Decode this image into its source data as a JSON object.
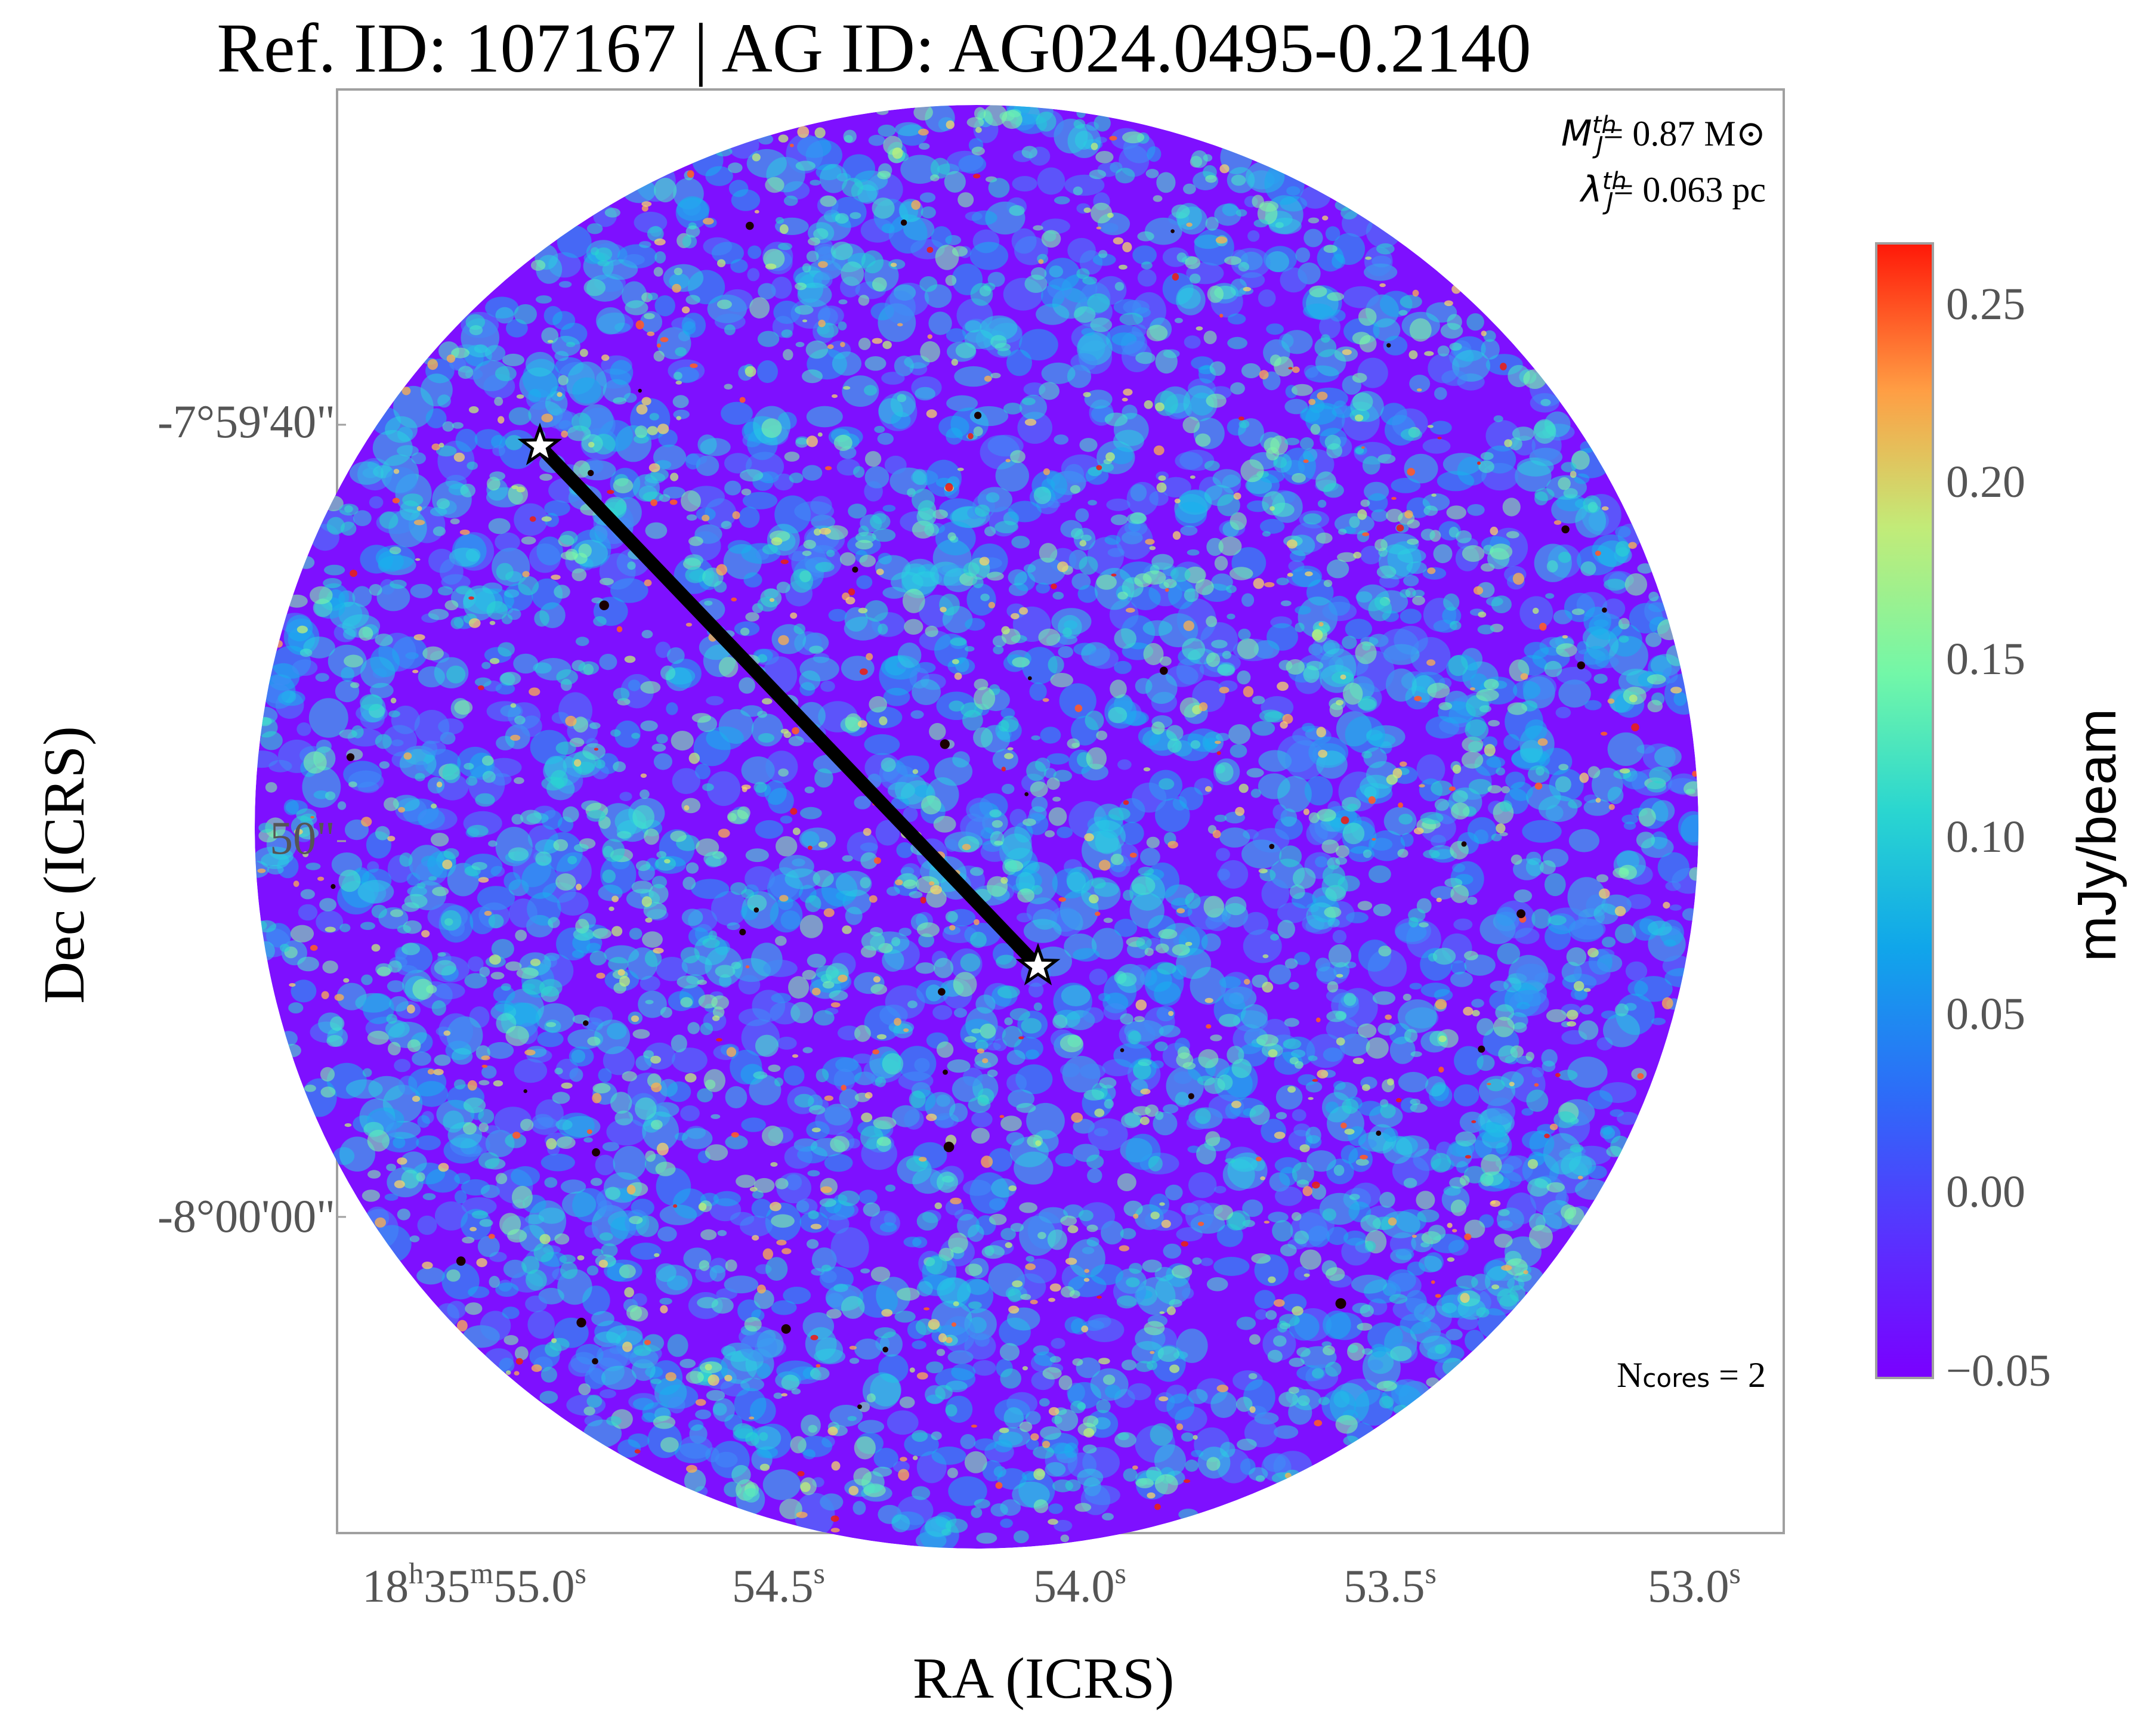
{
  "chart_data": {
    "type": "heatmap",
    "title": "Ref. ID: 107167 | AG ID: AG024.0495-0.2140",
    "xlabel": "RA (ICRS)",
    "ylabel": "Dec (ICRS)",
    "x_ticks": [
      "18h35m55.0s",
      "54.5s",
      "54.0s",
      "53.5s",
      "53.0s"
    ],
    "x_tick_parts": [
      {
        "pre": "18",
        "sup1": "h",
        "mid": "35",
        "sup2": "m",
        "val": "55.0",
        "sup3": "s"
      },
      {
        "pre": "",
        "sup1": "",
        "mid": "",
        "sup2": "",
        "val": "54.5",
        "sup3": "s"
      },
      {
        "pre": "",
        "sup1": "",
        "mid": "",
        "sup2": "",
        "val": "54.0",
        "sup3": "s"
      },
      {
        "pre": "",
        "sup1": "",
        "mid": "",
        "sup2": "",
        "val": "53.5",
        "sup3": "s"
      },
      {
        "pre": "",
        "sup1": "",
        "mid": "",
        "sup2": "",
        "val": "53.0",
        "sup3": "s"
      }
    ],
    "y_ticks": [
      "-7°59'40\"",
      "50\"",
      "-8°00'00\""
    ],
    "colorbar": {
      "label": "mJy/beam",
      "ticks": [
        "0.25",
        "0.20",
        "0.15",
        "0.10",
        "0.05",
        "0.00",
        "−0.05"
      ],
      "range": [
        -0.055,
        0.265
      ],
      "colormap": "rainbow"
    },
    "annotations": {
      "mj_symbol": "M",
      "mj_sub": "J",
      "mj_sup": "th",
      "mj_text": "= 0.87 M⊙",
      "lj_symbol": "λ",
      "lj_sub": "J",
      "lj_sup": "th",
      "lj_text": "= 0.063 pc",
      "ncores_main": "N",
      "ncores_sub": "cores",
      "ncores_text": " = 2"
    },
    "cores": [
      {
        "ra": "18h35m54.95s",
        "dec": "-7°59'39\"",
        "marker": "star"
      },
      {
        "ra": "18h35m54.07s",
        "dec": "-7°59'53\"",
        "marker": "star"
      }
    ],
    "grid": false,
    "colors": {
      "frame": "#a0a0a0",
      "tick_text": "#555555",
      "connector": "#000000",
      "star_fill": "#ffffff"
    }
  }
}
